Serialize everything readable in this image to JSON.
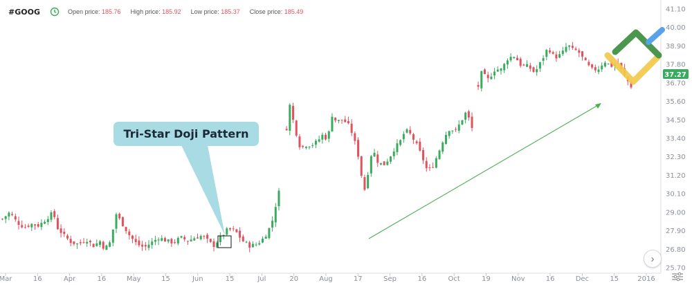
{
  "header": {
    "symbol": "#GOOG",
    "open_label": "Open price:",
    "open_value": "185.76",
    "high_label": "High price:",
    "high_value": "185.92",
    "low_label": "Low price:",
    "low_value": "185.37",
    "close_label": "Close price:",
    "close_value": "185.49"
  },
  "annotation": {
    "text": "Tri-Star Doji Pattern"
  },
  "colors": {
    "up": "#3aaa5e",
    "down": "#e0525d",
    "trend": "#4caf50",
    "callout": "#a8dbe3",
    "price_tag": "#3aaa5e"
  },
  "chart_data": {
    "type": "candlestick",
    "current_price": "37.27",
    "y_ticks": [
      "41.10",
      "40.00",
      "38.90",
      "37.80",
      "36.70",
      "35.60",
      "34.50",
      "33.40",
      "32.30",
      "31.20",
      "30.10",
      "29.00",
      "27.90",
      "26.80",
      "25.70"
    ],
    "ylim": [
      25.7,
      41.1
    ],
    "x_ticks": [
      "Mar",
      "16",
      "Apr",
      "16",
      "May",
      "15",
      "Jun",
      "15",
      "Jul",
      "20",
      "Aug",
      "17",
      "Sep",
      "16",
      "Oct",
      "19",
      "Nov",
      "16",
      "Dec",
      "15",
      "2016"
    ],
    "segments": [
      {
        "from": 0.0,
        "to": 0.43,
        "path": [
          [
            0,
            28.6
          ],
          [
            2,
            29.0
          ],
          [
            4,
            28.4
          ],
          [
            6,
            28.1
          ],
          [
            8,
            28.3
          ],
          [
            10,
            28.2
          ],
          [
            12,
            28.6
          ],
          [
            14,
            29.0
          ],
          [
            15,
            28.1
          ],
          [
            17,
            27.6
          ],
          [
            19,
            27.2
          ],
          [
            21,
            27.1
          ],
          [
            23,
            27.4
          ],
          [
            25,
            27.0
          ],
          [
            27,
            27.3
          ],
          [
            28,
            26.8
          ],
          [
            30,
            27.3
          ],
          [
            31,
            29.0
          ],
          [
            33,
            28.3
          ],
          [
            35,
            27.6
          ],
          [
            37,
            27.1
          ],
          [
            39,
            26.9
          ],
          [
            41,
            27.2
          ],
          [
            43,
            27.5
          ],
          [
            45,
            27.3
          ],
          [
            47,
            27.2
          ],
          [
            49,
            27.5
          ],
          [
            51,
            27.3
          ],
          [
            53,
            27.5
          ],
          [
            55,
            27.6
          ],
          [
            57,
            27.2
          ],
          [
            58,
            27.0
          ],
          [
            60,
            27.5
          ],
          [
            62,
            28.0
          ],
          [
            64,
            27.9
          ],
          [
            66,
            27.3
          ],
          [
            68,
            27.0
          ],
          [
            70,
            27.1
          ],
          [
            72,
            27.5
          ],
          [
            74,
            28.3
          ],
          [
            75,
            29.3
          ],
          [
            76,
            30.2
          ]
        ]
      },
      {
        "from": 0.43,
        "to": 0.72,
        "path": [
          [
            0,
            34.0
          ],
          [
            1,
            35.5
          ],
          [
            3,
            34.0
          ],
          [
            5,
            32.8
          ],
          [
            7,
            33.0
          ],
          [
            9,
            33.0
          ],
          [
            11,
            33.2
          ],
          [
            13,
            33.6
          ],
          [
            15,
            33.3
          ],
          [
            16,
            34.9
          ],
          [
            18,
            34.4
          ],
          [
            20,
            34.5
          ],
          [
            22,
            34.3
          ],
          [
            24,
            33.6
          ],
          [
            26,
            32.3
          ],
          [
            28,
            30.2
          ],
          [
            29,
            31.0
          ],
          [
            31,
            32.8
          ],
          [
            33,
            32.0
          ],
          [
            35,
            31.8
          ],
          [
            37,
            32.2
          ],
          [
            39,
            32.8
          ],
          [
            41,
            33.2
          ],
          [
            43,
            33.9
          ],
          [
            45,
            33.6
          ],
          [
            47,
            33.0
          ],
          [
            49,
            32.3
          ],
          [
            51,
            31.4
          ],
          [
            53,
            31.8
          ],
          [
            55,
            32.6
          ],
          [
            57,
            33.5
          ],
          [
            59,
            34.0
          ],
          [
            61,
            33.8
          ],
          [
            63,
            34.4
          ],
          [
            65,
            35.0
          ],
          [
            67,
            34.0
          ]
        ]
      },
      {
        "from": 0.72,
        "to": 0.96,
        "path": [
          [
            0,
            36.5
          ],
          [
            1,
            37.3
          ],
          [
            3,
            36.9
          ],
          [
            5,
            37.5
          ],
          [
            7,
            37.5
          ],
          [
            9,
            38.2
          ],
          [
            11,
            38.3
          ],
          [
            13,
            37.7
          ],
          [
            15,
            37.7
          ],
          [
            17,
            37.3
          ],
          [
            19,
            38.0
          ],
          [
            21,
            38.8
          ],
          [
            23,
            38.2
          ],
          [
            25,
            38.4
          ],
          [
            27,
            39.0
          ],
          [
            28,
            38.7
          ],
          [
            30,
            38.6
          ],
          [
            32,
            38.0
          ],
          [
            34,
            37.5
          ],
          [
            36,
            37.5
          ],
          [
            38,
            38.0
          ],
          [
            40,
            37.7
          ],
          [
            42,
            37.9
          ],
          [
            44,
            37.1
          ],
          [
            46,
            36.5
          ]
        ]
      }
    ]
  }
}
